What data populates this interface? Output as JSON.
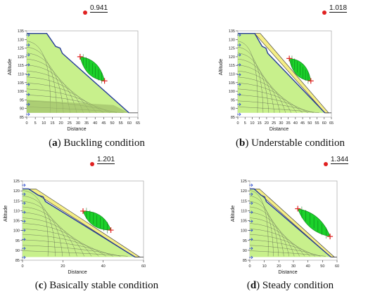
{
  "colors": {
    "soil_light": "#c8f08c",
    "soil_yellow": "#f5ee86",
    "slip_green": "#1bd12a",
    "slope_line": "#243a9a",
    "marker_red": "#e02020"
  },
  "axis": {
    "x_label": "Distance",
    "y_label": "Altitude"
  },
  "panels": [
    {
      "id": "a",
      "factor_of_safety": "0.941",
      "caption_letter": "a",
      "caption_text": " Buckling condition",
      "x_ticks": [
        "0",
        "5",
        "10",
        "15",
        "20",
        "25",
        "30",
        "35",
        "40",
        "45",
        "50",
        "55",
        "60",
        "65"
      ],
      "y_ticks": [
        "135",
        "130",
        "125",
        "120",
        "115",
        "110",
        "105",
        "100",
        "95",
        "90",
        "85"
      ],
      "x_range": [
        0,
        65
      ],
      "y_range": [
        85,
        135
      ]
    },
    {
      "id": "b",
      "factor_of_safety": "1.018",
      "caption_letter": "b",
      "caption_text": " Understable condition",
      "x_ticks": [
        "0",
        "5",
        "10",
        "15",
        "20",
        "25",
        "30",
        "35",
        "40",
        "45",
        "50",
        "55",
        "60",
        "65"
      ],
      "y_ticks": [
        "135",
        "130",
        "125",
        "120",
        "115",
        "110",
        "105",
        "100",
        "95",
        "90",
        "85"
      ],
      "x_range": [
        0,
        65
      ],
      "y_range": [
        85,
        135
      ]
    },
    {
      "id": "c",
      "factor_of_safety": "1.201",
      "caption_letter": "c",
      "caption_text": " Basically stable condition",
      "x_ticks": [
        "0",
        "20",
        "40",
        "60"
      ],
      "y_ticks": [
        "125",
        "120",
        "115",
        "110",
        "105",
        "100",
        "95",
        "90",
        "85"
      ],
      "x_range": [
        0,
        60
      ],
      "y_range": [
        85,
        125
      ]
    },
    {
      "id": "d",
      "factor_of_safety": "1.344",
      "caption_letter": "d",
      "caption_text": " Steady condition",
      "x_ticks": [
        "0",
        "10",
        "20",
        "30",
        "40",
        "50",
        "60"
      ],
      "y_ticks": [
        "125",
        "120",
        "115",
        "110",
        "105",
        "100",
        "95",
        "90",
        "85"
      ],
      "x_range": [
        0,
        60
      ],
      "y_range": [
        85,
        125
      ]
    }
  ]
}
